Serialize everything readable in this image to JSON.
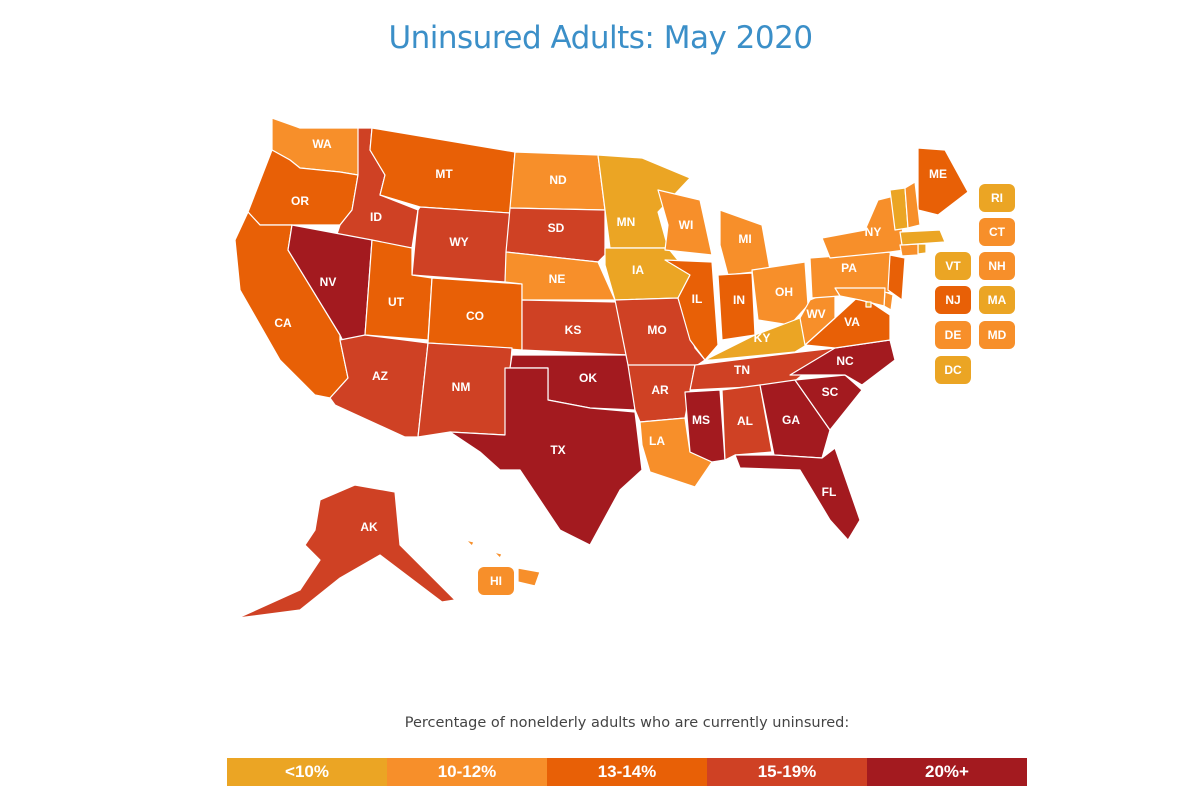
{
  "title": "Uninsured Adults: May 2020",
  "legend": {
    "caption": "Percentage of nonelderly adults who are currently uninsured:",
    "bins": [
      {
        "label": "<10%",
        "color": "#eba524"
      },
      {
        "label": "10-12%",
        "color": "#f78f2a"
      },
      {
        "label": "13-14%",
        "color": "#e86006"
      },
      {
        "label": "15-19%",
        "color": "#cf4124"
      },
      {
        "label": "20%+",
        "color": "#a31a1f"
      }
    ]
  },
  "states": [
    {
      "abbr": "WA",
      "bin": 1
    },
    {
      "abbr": "OR",
      "bin": 2
    },
    {
      "abbr": "CA",
      "bin": 2
    },
    {
      "abbr": "ID",
      "bin": 3
    },
    {
      "abbr": "NV",
      "bin": 4
    },
    {
      "abbr": "MT",
      "bin": 2
    },
    {
      "abbr": "WY",
      "bin": 3
    },
    {
      "abbr": "UT",
      "bin": 2
    },
    {
      "abbr": "CO",
      "bin": 2
    },
    {
      "abbr": "AZ",
      "bin": 3
    },
    {
      "abbr": "NM",
      "bin": 3
    },
    {
      "abbr": "ND",
      "bin": 1
    },
    {
      "abbr": "SD",
      "bin": 3
    },
    {
      "abbr": "NE",
      "bin": 1
    },
    {
      "abbr": "KS",
      "bin": 3
    },
    {
      "abbr": "OK",
      "bin": 4
    },
    {
      "abbr": "TX",
      "bin": 4
    },
    {
      "abbr": "MN",
      "bin": 0
    },
    {
      "abbr": "IA",
      "bin": 0
    },
    {
      "abbr": "MO",
      "bin": 3
    },
    {
      "abbr": "AR",
      "bin": 3
    },
    {
      "abbr": "LA",
      "bin": 1
    },
    {
      "abbr": "WI",
      "bin": 1
    },
    {
      "abbr": "IL",
      "bin": 2
    },
    {
      "abbr": "MI",
      "bin": 1
    },
    {
      "abbr": "IN",
      "bin": 2
    },
    {
      "abbr": "OH",
      "bin": 1
    },
    {
      "abbr": "KY",
      "bin": 0
    },
    {
      "abbr": "TN",
      "bin": 3
    },
    {
      "abbr": "MS",
      "bin": 4
    },
    {
      "abbr": "AL",
      "bin": 3
    },
    {
      "abbr": "GA",
      "bin": 4
    },
    {
      "abbr": "FL",
      "bin": 4
    },
    {
      "abbr": "SC",
      "bin": 4
    },
    {
      "abbr": "NC",
      "bin": 4
    },
    {
      "abbr": "VA",
      "bin": 2
    },
    {
      "abbr": "WV",
      "bin": 1
    },
    {
      "abbr": "PA",
      "bin": 1
    },
    {
      "abbr": "NY",
      "bin": 1
    },
    {
      "abbr": "ME",
      "bin": 2
    },
    {
      "abbr": "AK",
      "bin": 3
    },
    {
      "abbr": "HI",
      "bin": 1
    },
    {
      "abbr": "RI",
      "bin": 0
    },
    {
      "abbr": "CT",
      "bin": 1
    },
    {
      "abbr": "VT",
      "bin": 0
    },
    {
      "abbr": "NH",
      "bin": 1
    },
    {
      "abbr": "NJ",
      "bin": 2
    },
    {
      "abbr": "MA",
      "bin": 0
    },
    {
      "abbr": "DE",
      "bin": 1
    },
    {
      "abbr": "MD",
      "bin": 1
    },
    {
      "abbr": "DC",
      "bin": 0
    }
  ]
}
